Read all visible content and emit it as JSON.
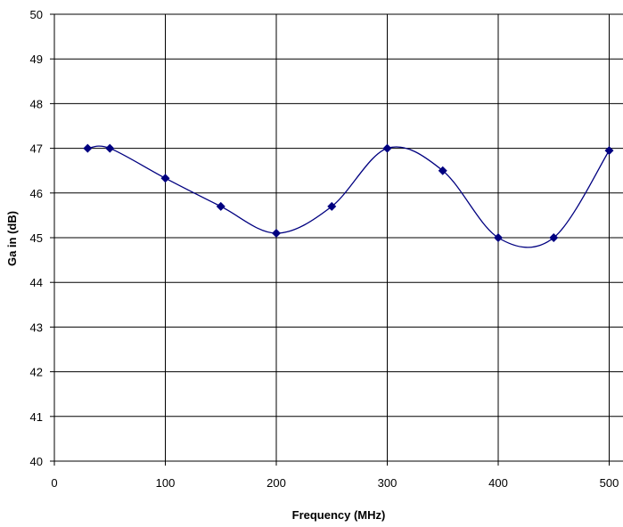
{
  "chart_data": {
    "type": "line",
    "title": "",
    "xlabel": "Frequency (MHz)",
    "ylabel": "Ga in (dB)",
    "xlim": [
      0,
      500
    ],
    "ylim": [
      40,
      50
    ],
    "x_ticks": [
      0,
      100,
      200,
      300,
      400,
      500
    ],
    "y_ticks": [
      40,
      41,
      42,
      43,
      44,
      45,
      46,
      47,
      48,
      49,
      50
    ],
    "grid": true,
    "legend": "none",
    "smooth": true,
    "series": [
      {
        "color": "#000080",
        "marker": "diamond",
        "points": [
          {
            "x": 30,
            "y": 47.0
          },
          {
            "x": 50,
            "y": 47.0
          },
          {
            "x": 100,
            "y": 46.33
          },
          {
            "x": 150,
            "y": 45.7
          },
          {
            "x": 200,
            "y": 45.1
          },
          {
            "x": 250,
            "y": 45.7
          },
          {
            "x": 300,
            "y": 47.0
          },
          {
            "x": 350,
            "y": 46.5
          },
          {
            "x": 400,
            "y": 45.0
          },
          {
            "x": 450,
            "y": 45.0
          },
          {
            "x": 500,
            "y": 46.95
          }
        ]
      }
    ]
  }
}
